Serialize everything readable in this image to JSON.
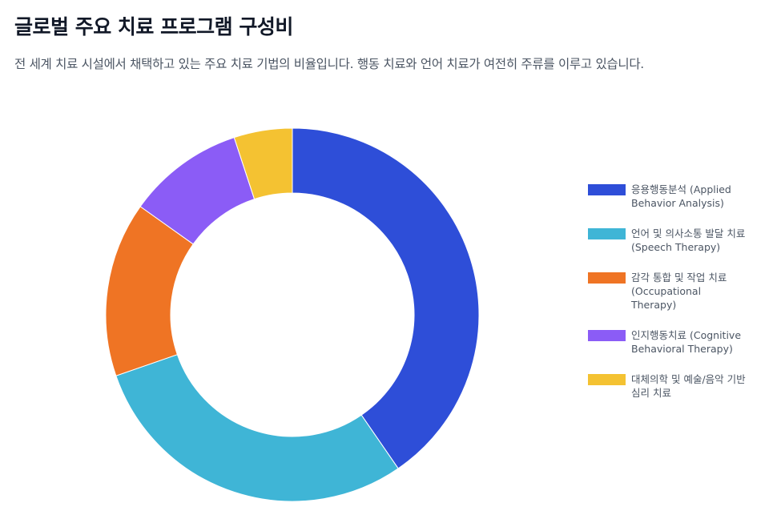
{
  "header": {
    "title": "글로벌 주요 치료 프로그램 구성비",
    "subtitle": "전 세계 치료 시설에서 채택하고 있는 주요 치료 기법의 비율입니다. 행동 치료와 언어 치료가 여전히 주류를 이루고 있습니다."
  },
  "chart_data": {
    "type": "pie",
    "donut": true,
    "title": "글로벌 주요 치료 프로그램 구성비",
    "legend_position": "right",
    "categories": [
      "응용행동분석 (Applied Behavior Analysis)",
      "언어 및 의사소통 발달 치료 (Speech Therapy)",
      "감각 통합 및 작업 치료 (Occupational Therapy)",
      "인지행동치료 (Cognitive Behavioral Therapy)",
      "대체의학 및 예술/음악 기반 심리 치료"
    ],
    "values": [
      40,
      29,
      15,
      10,
      5
    ],
    "colors": [
      "#2e4ed8",
      "#3fb5d6",
      "#ef7424",
      "#8b5cf6",
      "#f4c232"
    ]
  }
}
